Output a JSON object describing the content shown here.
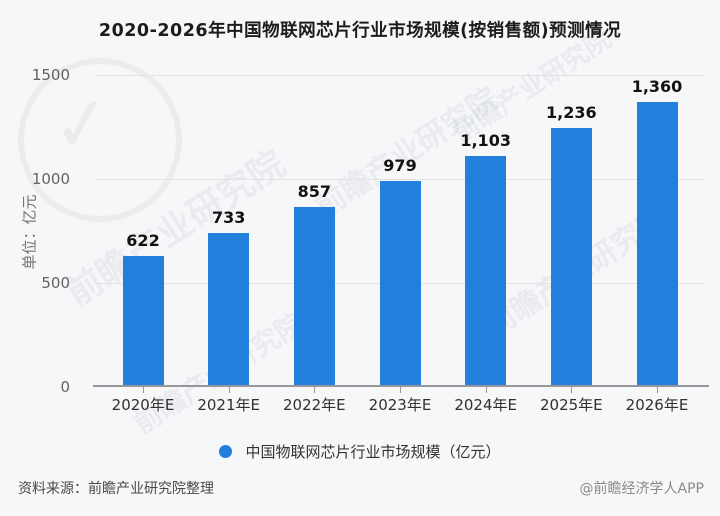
{
  "title": "2020-2026年中国物联网芯片行业市场规模(按销售额)预测情况",
  "watermark": {
    "text": "前瞻产业研究院",
    "logo_check": "✓"
  },
  "chart_data": {
    "type": "bar",
    "title": "2020-2026年中国物联网芯片行业市场规模(按销售额)预测情况",
    "categories": [
      "2020年E",
      "2021年E",
      "2022年E",
      "2023年E",
      "2024年E",
      "2025年E",
      "2026年E"
    ],
    "series": [
      {
        "name": "中国物联网芯片行业市场规模（亿元）",
        "values": [
          622,
          733,
          857,
          979,
          1103,
          1236,
          1360
        ],
        "value_labels": [
          "622",
          "733",
          "857",
          "979",
          "1,103",
          "1,236",
          "1,360"
        ],
        "color": "#2180db"
      }
    ],
    "xlabel": "",
    "ylabel": "单位：亿元",
    "ylim": [
      0,
      1500
    ],
    "yticks": [
      {
        "value": 0,
        "label": "0"
      },
      {
        "value": 500,
        "label": "500"
      },
      {
        "value": 1000,
        "label": "1000"
      },
      {
        "value": 1500,
        "label": "1500"
      }
    ],
    "grid": true,
    "legend_position": "bottom"
  },
  "y_axis": {
    "unit_label": "单位：亿元"
  },
  "legend": {
    "label": "中国物联网芯片行业市场规模（亿元）",
    "marker_color": "#2180db"
  },
  "footer": {
    "source": "资料来源：前瞻产业研究院整理",
    "credit": "@前瞻经济学人APP"
  }
}
